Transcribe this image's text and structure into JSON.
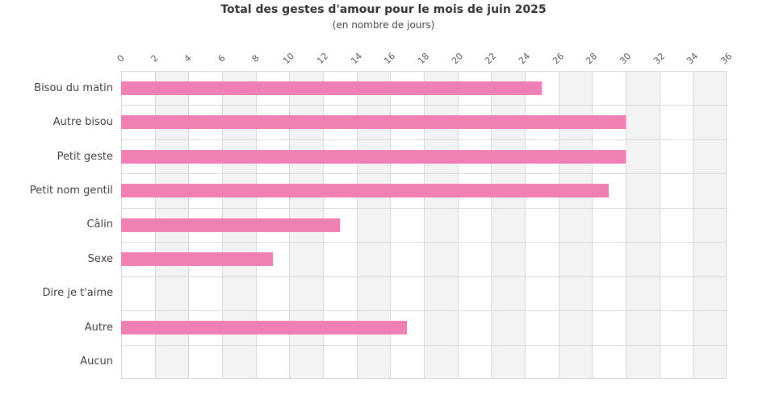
{
  "header": {
    "title": "Total des gestes d'amour pour le mois de juin 2025",
    "subtitle": "(en nombre de jours)"
  },
  "chart_data": {
    "type": "bar",
    "orientation": "horizontal",
    "title": "Total des gestes d'amour pour le mois de juin 2025",
    "subtitle": "(en nombre de jours)",
    "categories": [
      "Bisou du matin",
      "Autre bisou",
      "Petit geste",
      "Petit nom gentil",
      "Câlin",
      "Sexe",
      "Dire je t'aime",
      "Autre",
      "Aucun"
    ],
    "values": [
      25,
      30,
      30,
      29,
      13,
      9,
      0,
      17,
      0
    ],
    "xlabel": "",
    "ylabel": "",
    "xlim": [
      0,
      36
    ],
    "xticks": [
      0,
      2,
      4,
      6,
      8,
      10,
      12,
      14,
      16,
      18,
      20,
      22,
      24,
      26,
      28,
      30,
      32,
      34,
      36
    ],
    "tick_position": "top",
    "tick_rotation_deg": -45,
    "grid": true,
    "legend": false,
    "colors": {
      "bar": "#f080b4",
      "stripe": "#f3f3f3",
      "gridline": "#d9d9d9",
      "title": "#333333",
      "category_label": "#404040",
      "tick_label": "#595959",
      "background": "#ffffff"
    }
  }
}
